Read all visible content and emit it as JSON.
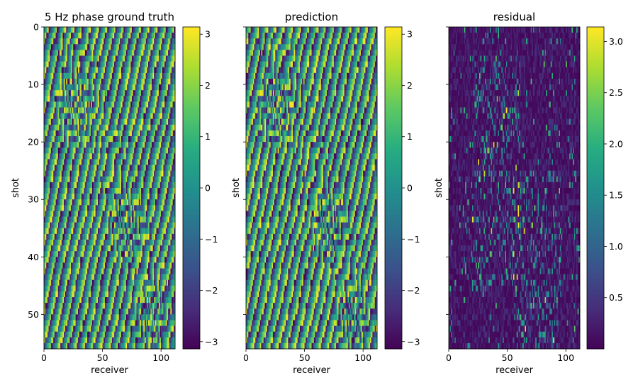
{
  "chart_data": [
    {
      "type": "heatmap",
      "title": "5 Hz phase ground truth",
      "xlabel": "receiver",
      "ylabel": "shot",
      "grid_shape": [
        56,
        112
      ],
      "xlim": [
        0,
        112
      ],
      "ylim": [
        56,
        0
      ],
      "x_ticks": [
        "0",
        "50",
        "100"
      ],
      "y_ticks": [
        "0",
        "10",
        "20",
        "30",
        "40",
        "50"
      ],
      "colormap": "viridis",
      "colorbar": {
        "range": [
          -3.1416,
          3.1416
        ],
        "ticks": [
          "−3",
          "−2",
          "−1",
          "0",
          "1",
          "2",
          "3"
        ]
      },
      "pattern": "wrapped phase",
      "stripe_frequency": 0.14,
      "zone_bands": [
        [
          9,
          18,
          16,
          34
        ],
        [
          30,
          38,
          60,
          80
        ],
        [
          46,
          53,
          82,
          100
        ]
      ]
    },
    {
      "type": "heatmap",
      "title": "prediction",
      "xlabel": "receiver",
      "ylabel": "shot",
      "grid_shape": [
        56,
        112
      ],
      "xlim": [
        0,
        112
      ],
      "ylim": [
        56,
        0
      ],
      "x_ticks": [
        "0",
        "50",
        "100"
      ],
      "y_ticks": [
        "0",
        "10",
        "20",
        "30",
        "40",
        "50"
      ],
      "colormap": "viridis",
      "colorbar": {
        "range": [
          -3.1416,
          3.1416
        ],
        "ticks": [
          "−3",
          "−2",
          "−1",
          "0",
          "1",
          "2",
          "3"
        ]
      },
      "pattern": "wrapped phase",
      "stripe_frequency": 0.14,
      "zone_bands": [
        [
          9,
          18,
          16,
          34
        ],
        [
          30,
          38,
          60,
          80
        ],
        [
          46,
          53,
          82,
          100
        ]
      ]
    },
    {
      "type": "heatmap",
      "title": "residual",
      "xlabel": "receiver",
      "ylabel": "shot",
      "grid_shape": [
        56,
        112
      ],
      "xlim": [
        0,
        112
      ],
      "ylim": [
        56,
        0
      ],
      "x_ticks": [
        "0",
        "50",
        "100"
      ],
      "y_ticks": [
        "0",
        "10",
        "20",
        "30",
        "40",
        "50"
      ],
      "colormap": "viridis",
      "colorbar": {
        "range": [
          0,
          3.1416
        ],
        "ticks": [
          "0.5",
          "1.0",
          "1.5",
          "2.0",
          "2.5",
          "3.0"
        ]
      },
      "pattern": "absolute residual",
      "mean_level": 0.35,
      "hotspot_regions": [
        [
          5,
          45,
          20,
          60
        ],
        [
          25,
          55,
          55,
          95
        ]
      ]
    }
  ]
}
